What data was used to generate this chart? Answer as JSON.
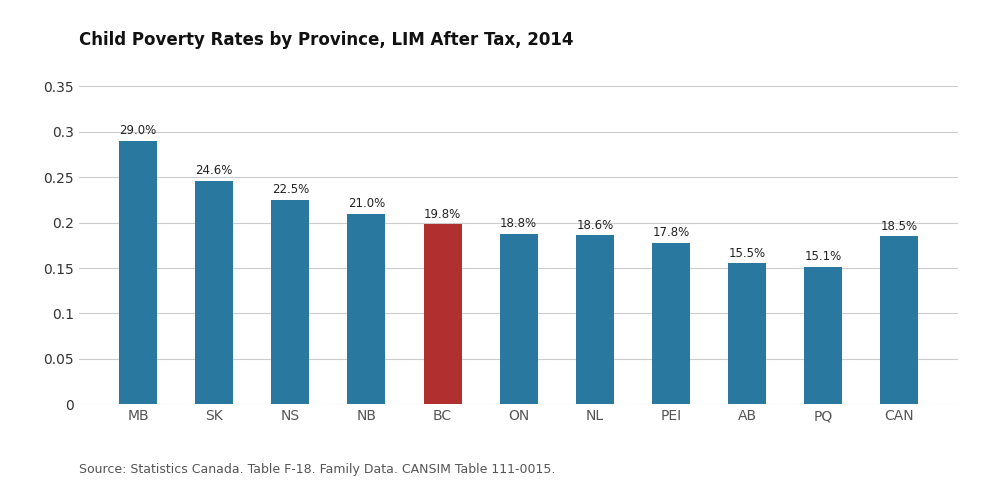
{
  "title": "Child Poverty Rates by Province, LIM After Tax, 2014",
  "categories": [
    "MB",
    "SK",
    "NS",
    "NB",
    "BC",
    "ON",
    "NL",
    "PEI",
    "AB",
    "PQ",
    "CAN"
  ],
  "values": [
    0.29,
    0.246,
    0.225,
    0.21,
    0.198,
    0.188,
    0.186,
    0.178,
    0.155,
    0.151,
    0.185
  ],
  "labels": [
    "29.0%",
    "24.6%",
    "22.5%",
    "21.0%",
    "19.8%",
    "18.8%",
    "18.6%",
    "17.8%",
    "15.5%",
    "15.1%",
    "18.5%"
  ],
  "bar_colors": [
    "#2878a0",
    "#2878a0",
    "#2878a0",
    "#2878a0",
    "#b03030",
    "#2878a0",
    "#2878a0",
    "#2878a0",
    "#2878a0",
    "#2878a0",
    "#2878a0"
  ],
  "ylim": [
    0,
    0.38
  ],
  "ytick_vals": [
    0,
    0.05,
    0.1,
    0.15,
    0.2,
    0.25,
    0.3,
    0.35
  ],
  "ytick_labels": [
    "0",
    "0.05",
    "0.1",
    "0.15",
    "0.2",
    "0.25",
    "0.3",
    "0.35"
  ],
  "background_color": "#ffffff",
  "source_text": "Source: Statistics Canada. Table F-18. Family Data. CANSIM Table 111-0015.",
  "title_fontsize": 12,
  "label_fontsize": 8.5,
  "tick_fontsize": 10,
  "source_fontsize": 9,
  "bar_width": 0.5
}
